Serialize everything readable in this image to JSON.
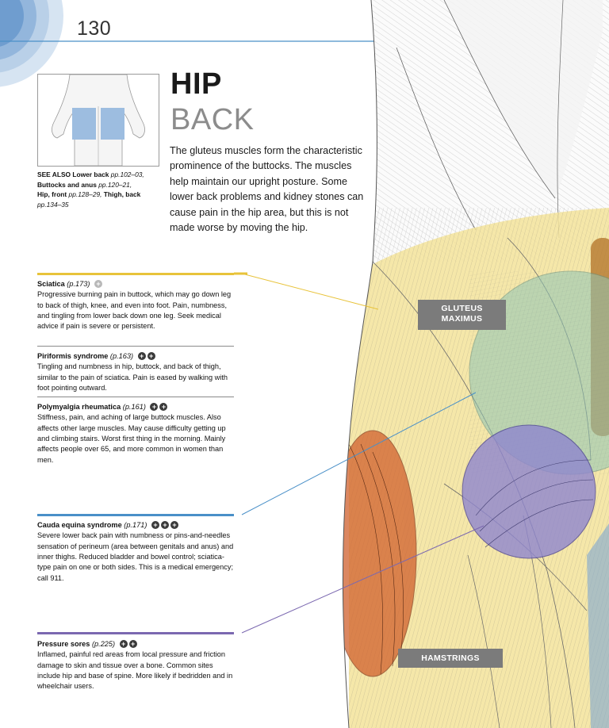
{
  "page_number": "130",
  "title": "HIP",
  "subtitle": "BACK",
  "intro": "The gluteus muscles form the characteristic prominence of the buttocks. The muscles help maintain our upright posture. Some lower back problems and kidney stones can cause pain in the hip area, but this is not made worse by moving the hip.",
  "see_also": {
    "label": "SEE ALSO",
    "line1_name": "Lower back",
    "line1_pages": "pp.102–03,",
    "line2_name": "Buttocks and anus",
    "line2_pages": "pp.120–21,",
    "line3_name": "Hip, front",
    "line3_pages": "pp.128–29,",
    "line3_name2": "Thigh, back",
    "line4_pages": "pp.134–35"
  },
  "conditions": [
    {
      "name": "Sciatica",
      "page": "(p.173)",
      "severity": 1,
      "color": "#e8c33a",
      "text": "Progressive burning pain in buttock, which may go down leg to back of thigh, knee, and even into foot. Pain, numbness, and tingling from lower back down one leg. Seek medical advice if pain is severe or persistent."
    },
    {
      "name": "Piriformis syndrome",
      "page": "(p.163)",
      "severity": 2,
      "color": "#e8c33a",
      "text": "Tingling and numbness in hip, buttock, and back of thigh, similar to the pain of sciatica. Pain is eased by walking with foot pointing outward."
    },
    {
      "name": "Polymyalgia rheumatica",
      "page": "(p.161)",
      "severity": 2,
      "color": "#e8c33a",
      "text": "Stiffness, pain, and aching of large buttock muscles. Also affects other large muscles. May cause difficulty getting up and climbing stairs. Worst first thing in the morning. Mainly affects people over 65, and more common in women than men."
    },
    {
      "name": "Cauda equina syndrome",
      "page": "(p.171)",
      "severity": 3,
      "color": "#4a90c8",
      "text": "Severe lower back pain with numbness or pins-and-needles sensation of perineum (area between genitals and anus) and inner thighs. Reduced bladder and bowel control; sciatica-type pain on one or both sides. This is a medical emergency; call 911."
    },
    {
      "name": "Pressure sores",
      "page": "(p.225)",
      "severity": 2,
      "color": "#7b68b0",
      "text": "Inflamed, painful red areas from local pressure and friction damage to skin and tissue over a bone. Common sites include hip and base of spine. More likely if bedridden and in wheelchair users."
    }
  ],
  "labels": {
    "gluteus_line1": "GLUTEUS",
    "gluteus_line2": "MAXIMUS",
    "hamstrings": "HAMSTRINGS"
  },
  "colors": {
    "yellow_zone": "#f3e39a",
    "teal_zone": "#8fc6b6",
    "purple_zone": "#8f86cf",
    "orange_zone": "#d0602e",
    "blue_rule": "#4a90c8",
    "yellow_rule": "#e8c33a",
    "purple_rule": "#7b68b0",
    "thumb_highlight": "#9dbde0"
  }
}
